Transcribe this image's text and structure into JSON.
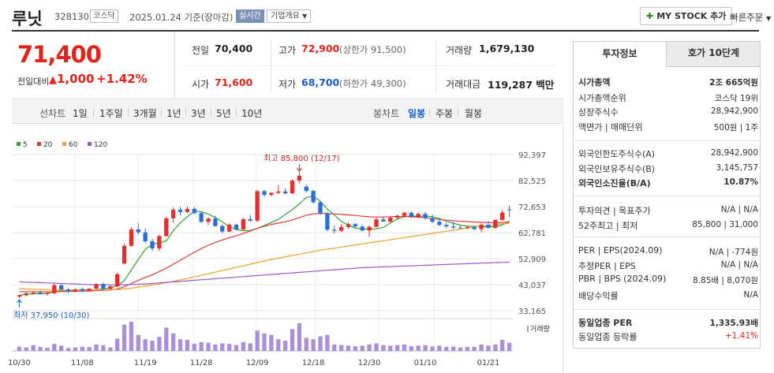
{
  "header": {
    "name": "루닛",
    "code": "328130",
    "market_tag": "코스닥",
    "date": "2025.01.24",
    "basis": "기준(장마감)",
    "realtime": "실시간",
    "overview": "기업개요",
    "my_stock": "MY STOCK 추가",
    "quick_order": "빠른주문"
  },
  "price": {
    "current": "71,400",
    "prev_label": "전일대비",
    "change": "1,000",
    "change_pct": "+1.42%"
  },
  "info": {
    "prev_close_label": "전일",
    "prev_close": "70,400",
    "high_label": "고가",
    "high": "72,900",
    "upper_limit": "(상한가 91,500)",
    "volume_label": "거래량",
    "volume": "1,679,130",
    "open_label": "시가",
    "open": "71,600",
    "low_label": "저가",
    "low": "68,700",
    "lower_limit": "(하한가 49,300)",
    "amount_label": "거래대금",
    "amount": "119,287",
    "amount_unit": "백만"
  },
  "tabs": {
    "line_label": "선차트",
    "periods": [
      "1일",
      "1주일",
      "3개월",
      "1년",
      "3년",
      "5년",
      "10년"
    ],
    "candle_label": "봉차트",
    "candle_periods": [
      "일봉",
      "주봉",
      "월봉"
    ],
    "candle_selected": "일봉"
  },
  "chart_data": {
    "type": "candlestick",
    "legend": [
      {
        "name": "5",
        "color": "#2fa52f"
      },
      {
        "name": "20",
        "color": "#e03b3b"
      },
      {
        "name": "60",
        "color": "#f0a030"
      },
      {
        "name": "120",
        "color": "#9b59c7"
      }
    ],
    "y_ticks": [
      "92,397",
      "82,525",
      "72,653",
      "62,781",
      "52,909",
      "43,037",
      "33,165"
    ],
    "x_ticks": [
      "10/30",
      "11/08",
      "11/19",
      "11/28",
      "12/09",
      "12/18",
      "12/30",
      "01/10",
      "01/21"
    ],
    "high_annotation": "최고 85,800 (12/17)",
    "low_annotation": "최저 37,950 (10/30)",
    "volume_label": "거래량",
    "candles": [
      [
        38500,
        39200,
        37950,
        39000
      ],
      [
        39000,
        40100,
        38600,
        39800
      ],
      [
        39800,
        40300,
        39200,
        40000
      ],
      [
        40000,
        40800,
        39400,
        39600
      ],
      [
        39600,
        40200,
        38900,
        39800
      ],
      [
        39800,
        43500,
        39500,
        42800
      ],
      [
        42800,
        43200,
        40800,
        41200
      ],
      [
        41200,
        41800,
        39800,
        40500
      ],
      [
        40500,
        41600,
        40200,
        41200
      ],
      [
        41200,
        41900,
        40400,
        40700
      ],
      [
        40700,
        41700,
        40500,
        41500
      ],
      [
        41500,
        43600,
        41300,
        43300
      ],
      [
        43300,
        43900,
        41000,
        41400
      ],
      [
        41400,
        42700,
        41000,
        42400
      ],
      [
        42400,
        47500,
        42000,
        47000
      ],
      [
        51000,
        58500,
        51000,
        57800
      ],
      [
        57800,
        64800,
        57500,
        64000
      ],
      [
        64000,
        66400,
        62000,
        62900
      ],
      [
        62900,
        64300,
        58800,
        59500
      ],
      [
        59500,
        60500,
        55900,
        56800
      ],
      [
        56800,
        62000,
        55800,
        61500
      ],
      [
        61500,
        68800,
        61200,
        68200
      ],
      [
        68200,
        72300,
        66500,
        71500
      ],
      [
        71500,
        72500,
        69300,
        70600
      ],
      [
        70600,
        72700,
        70200,
        71800
      ],
      [
        71800,
        72500,
        69700,
        70200
      ],
      [
        70200,
        70800,
        66400,
        66900
      ],
      [
        66900,
        68600,
        65600,
        68100
      ],
      [
        68100,
        69200,
        65000,
        65300
      ],
      [
        65300,
        65900,
        62500,
        63200
      ],
      [
        63200,
        66200,
        62900,
        65800
      ],
      [
        65800,
        66100,
        63500,
        64000
      ],
      [
        64000,
        68300,
        63700,
        67900
      ],
      [
        67900,
        69500,
        66800,
        67300
      ],
      [
        67300,
        79000,
        66800,
        78500
      ],
      [
        78500,
        79100,
        76300,
        77100
      ],
      [
        77100,
        78200,
        76400,
        77900
      ],
      [
        77900,
        80800,
        77400,
        78400
      ],
      [
        78400,
        79600,
        77200,
        77700
      ],
      [
        77700,
        83000,
        77400,
        82500
      ],
      [
        82500,
        85800,
        81400,
        84400
      ],
      [
        80200,
        81000,
        78000,
        78600
      ],
      [
        78600,
        79000,
        73800,
        74300
      ],
      [
        74300,
        74800,
        69500,
        70100
      ],
      [
        70100,
        70600,
        63400,
        63900
      ],
      [
        63900,
        65500,
        62400,
        63500
      ],
      [
        63500,
        65900,
        63000,
        64900
      ],
      [
        64900,
        66600,
        64200,
        66000
      ],
      [
        66000,
        66400,
        64700,
        65100
      ],
      [
        65100,
        65700,
        63200,
        63600
      ],
      [
        63600,
        65500,
        61100,
        65000
      ],
      [
        65000,
        68600,
        64600,
        67800
      ],
      [
        67800,
        68800,
        66800,
        67000
      ],
      [
        67000,
        68800,
        66500,
        68400
      ],
      [
        68400,
        69700,
        67800,
        69200
      ],
      [
        69200,
        70600,
        68800,
        70300
      ],
      [
        70300,
        70800,
        68100,
        68700
      ],
      [
        68700,
        70400,
        68300,
        69900
      ],
      [
        69900,
        70700,
        67600,
        68300
      ],
      [
        68300,
        69700,
        66400,
        66900
      ],
      [
        66900,
        68100,
        65300,
        65700
      ],
      [
        65700,
        66600,
        64400,
        65100
      ],
      [
        65100,
        66800,
        64100,
        64700
      ],
      [
        64700,
        65600,
        64200,
        64500
      ],
      [
        64500,
        65300,
        64300,
        64900
      ],
      [
        64900,
        65400,
        63700,
        64100
      ],
      [
        64100,
        66300,
        62900,
        65800
      ],
      [
        65800,
        67200,
        64300,
        64600
      ],
      [
        64600,
        67800,
        64300,
        67600
      ],
      [
        67600,
        71400,
        67300,
        70400
      ],
      [
        71600,
        72900,
        68700,
        71400
      ]
    ],
    "volumes": [
      15,
      12,
      20,
      14,
      11,
      24,
      18,
      10,
      12,
      14,
      13,
      22,
      20,
      12,
      42,
      90,
      100,
      55,
      40,
      35,
      48,
      80,
      60,
      40,
      38,
      25,
      30,
      28,
      22,
      26,
      24,
      20,
      30,
      26,
      70,
      60,
      55,
      40,
      35,
      75,
      95,
      45,
      40,
      50,
      55,
      22,
      20,
      18,
      16,
      18,
      22,
      26,
      20,
      18,
      20,
      22,
      16,
      18,
      20,
      15,
      18,
      14,
      15,
      12,
      14,
      14,
      22,
      18,
      22,
      38,
      28
    ],
    "ma_values": {
      "ma5": [
        39000,
        39400,
        39600,
        39600,
        39600,
        40400,
        40700,
        40700,
        40900,
        41300,
        41000,
        41000,
        41500,
        41800,
        42600,
        44600,
        48600,
        52600,
        56500,
        58300,
        58900,
        59700,
        63500,
        66500,
        68800,
        70900,
        70700,
        69800,
        68500,
        66900,
        65000,
        64000,
        63500,
        63600,
        64400,
        65500,
        66600,
        67800,
        69700,
        71500,
        73700,
        76100,
        76600,
        74700,
        71700,
        69500,
        67000,
        65700,
        64500,
        64200,
        64100,
        64200,
        64800,
        66400,
        67900,
        68800,
        69200,
        68900,
        69100,
        68800,
        68100,
        67100,
        66400,
        65600,
        65300,
        65100,
        65100,
        65000,
        65000,
        65700,
        67200
      ],
      "ma20": [
        40400,
        40400,
        40400,
        40300,
        40300,
        40300,
        40400,
        40500,
        40500,
        40600,
        40600,
        40800,
        40900,
        41000,
        41400,
        42300,
        43500,
        44700,
        45800,
        46800,
        48000,
        49300,
        50800,
        52300,
        53800,
        55300,
        56700,
        58000,
        59100,
        60000,
        60900,
        61600,
        62500,
        63400,
        64400,
        65200,
        65900,
        66400,
        66900,
        67600,
        68500,
        69400,
        69900,
        70100,
        70000,
        69900,
        69700,
        69500,
        69300,
        69000,
        68800,
        68700,
        68700,
        68800,
        68900,
        68900,
        68800,
        68600,
        68400,
        68100,
        67800,
        67500,
        67300,
        67100,
        67000,
        66800,
        66700,
        66600,
        66500,
        66600,
        66800
      ],
      "ma60": [
        41500,
        41400,
        41300,
        41200,
        41100,
        41000,
        41000,
        41000,
        41000,
        41000,
        41000,
        41000,
        41100,
        41100,
        41200,
        41400,
        41700,
        42100,
        42500,
        42900,
        43300,
        43800,
        44300,
        44800,
        45400,
        46000,
        46600,
        47200,
        47800,
        48400,
        49000,
        49600,
        50200,
        50800,
        51400,
        52000,
        52600,
        53100,
        53600,
        54100,
        54600,
        55100,
        55600,
        56100,
        56500,
        56900,
        57300,
        57700,
        58100,
        58500,
        58900,
        59300,
        59700,
        60100,
        60500,
        60900,
        61300,
        61700,
        62100,
        62500,
        62900,
        63300,
        63700,
        64100,
        64500,
        64900,
        65200,
        65500,
        65800,
        66100,
        66400
      ],
      "ma120": [
        44100,
        44000,
        43900,
        43800,
        43700,
        43600,
        43500,
        43400,
        43300,
        43200,
        43100,
        43000,
        43000,
        43000,
        43000,
        43000,
        43100,
        43200,
        43300,
        43500,
        43700,
        43900,
        44100,
        44300,
        44500,
        44700,
        44900,
        45100,
        45300,
        45500,
        45700,
        45900,
        46100,
        46300,
        46500,
        46700,
        46900,
        47100,
        47300,
        47500,
        47700,
        47900,
        48100,
        48300,
        48500,
        48700,
        48900,
        49100,
        49300,
        49500,
        49600,
        49700,
        49800,
        49900,
        50000,
        50100,
        50200,
        50300,
        50400,
        50500,
        50600,
        50700,
        50800,
        50900,
        51000,
        51100,
        51200,
        51300,
        51400,
        51500,
        51600
      ]
    },
    "y_range": [
      33165,
      92397
    ]
  },
  "panel": {
    "tab_invest": "투자정보",
    "tab_hoga": "호가 10단계",
    "rows": [
      {
        "label": "시가총액",
        "value": "2조 665억원",
        "bold": true
      },
      {
        "label": "시가총액순위",
        "value": "코스닥 19위"
      },
      {
        "label": "상장주식수",
        "value": "28,942,900"
      },
      {
        "label": "액면가 | 매매단위",
        "value": "500원 | 1주"
      },
      {
        "label": "외국인한도주식수(A)",
        "value": "28,942,900"
      },
      {
        "label": "외국인보유주식수(B)",
        "value": "3,145,757"
      },
      {
        "label": "외국인소진율(B/A)",
        "value": "10.87%",
        "bold": true
      },
      {
        "label": "투자의견 | 목표주가",
        "value": "N/A | N/A"
      },
      {
        "label": "52주최고 | 최저",
        "value": "85,800 | 31,000"
      },
      {
        "label": "PER | EPS(2024.09)",
        "value": "N/A | -774원"
      },
      {
        "label": "추정PER | EPS",
        "value": "N/A | N/A"
      },
      {
        "label": "PBR | BPS (2024.09)",
        "value": "8.85배 | 8,070원"
      },
      {
        "label": "배당수익률",
        "value": "N/A"
      },
      {
        "label": "동일업종 PER",
        "value": "1,335.93배",
        "bold": true
      },
      {
        "label": "동일업종 등락률",
        "value": "+1.41%",
        "red": true
      }
    ]
  }
}
